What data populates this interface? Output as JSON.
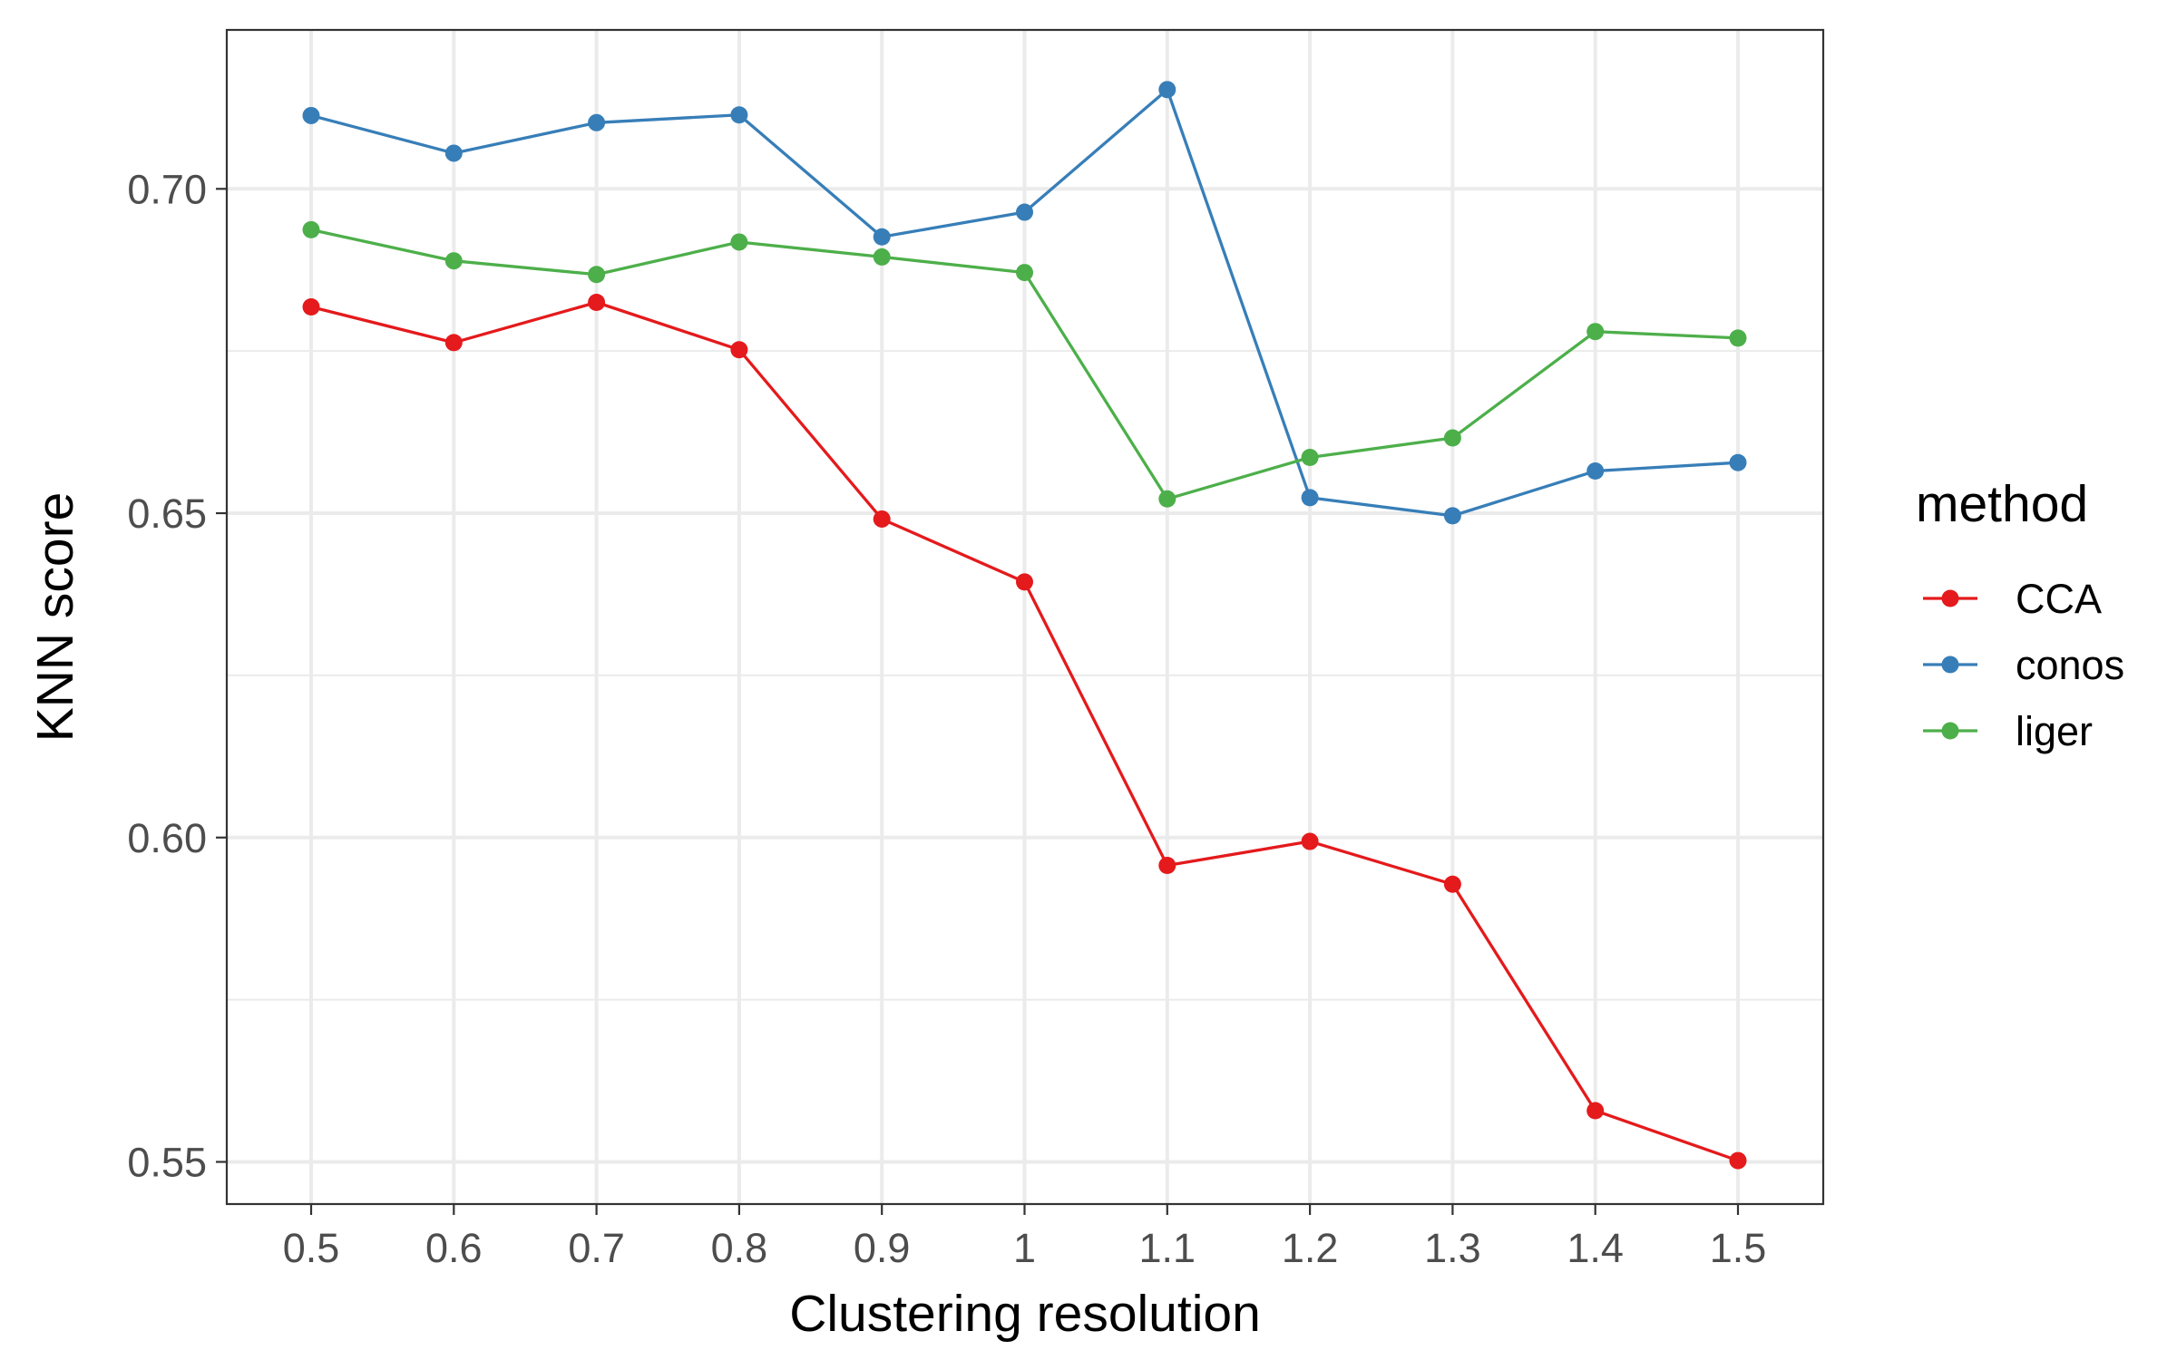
{
  "chart_data": {
    "type": "line",
    "xlabel": "Clustering resolution",
    "ylabel": "KNN score",
    "x": [
      "0.5",
      "0.6",
      "0.7",
      "0.8",
      "0.9",
      "1",
      "1.1",
      "1.2",
      "1.3",
      "1.4",
      "1.5"
    ],
    "y_ticks": [
      "0.55",
      "0.60",
      "0.65",
      "0.70"
    ],
    "y_tick_values": [
      0.55,
      0.6,
      0.65,
      0.7
    ],
    "ylim": [
      0.5435,
      0.7245
    ],
    "grid": true,
    "legend": {
      "title": "method",
      "placement": "right"
    },
    "series": [
      {
        "name": "CCA",
        "color": "#E41A1C",
        "values": [
          0.6818,
          0.6763,
          0.6825,
          0.6752,
          0.6491,
          0.6394,
          0.5957,
          0.5994,
          0.5928,
          0.5579,
          0.5502
        ]
      },
      {
        "name": "conos",
        "color": "#377EB8",
        "values": [
          0.7113,
          0.7055,
          0.7102,
          0.7114,
          0.6926,
          0.6964,
          0.7153,
          0.6524,
          0.6496,
          0.6565,
          0.6578
        ]
      },
      {
        "name": "liger",
        "color": "#4DAF4A",
        "values": [
          0.6937,
          0.6889,
          0.6868,
          0.6918,
          0.6895,
          0.6871,
          0.6522,
          0.6586,
          0.6616,
          0.678,
          0.677
        ]
      }
    ]
  }
}
